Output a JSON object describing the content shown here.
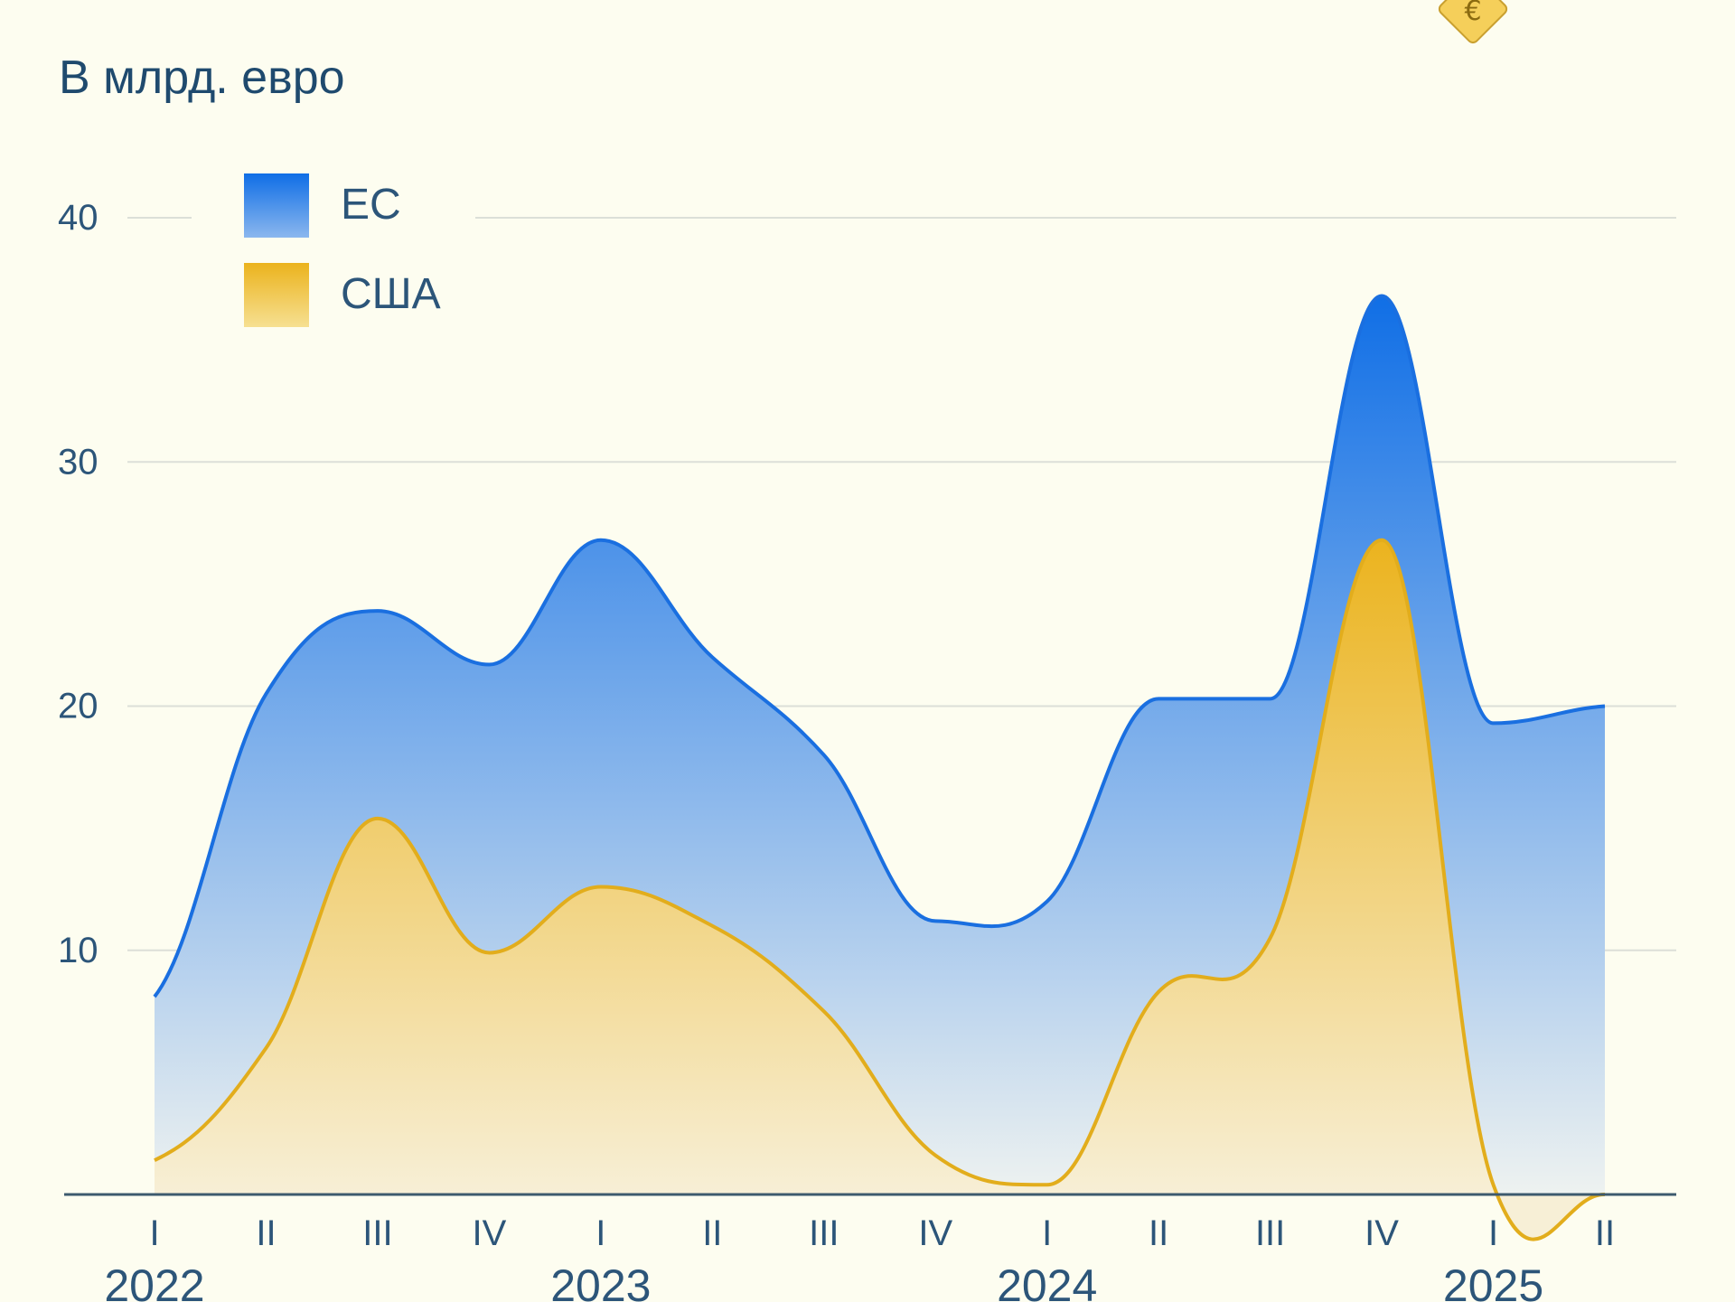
{
  "subtitle": "В млрд. евро",
  "chart_data": {
    "type": "area",
    "title": "",
    "subtitle": "В млрд. евро",
    "xlabel": "",
    "ylabel": "",
    "ylim": [
      0,
      40
    ],
    "yticks": [
      10,
      20,
      30,
      40
    ],
    "grid": true,
    "legend_position": "top-left",
    "quarters": [
      "I",
      "II",
      "III",
      "IV",
      "I",
      "II",
      "III",
      "IV",
      "I",
      "II",
      "III",
      "IV",
      "I",
      "II"
    ],
    "years": [
      {
        "label": "2022",
        "index": 0
      },
      {
        "label": "2023",
        "index": 4
      },
      {
        "label": "2024",
        "index": 8
      },
      {
        "label": "2025",
        "index": 12
      }
    ],
    "series": [
      {
        "name": "ЕС",
        "color": "#1a73e0",
        "values": [
          8.1,
          20.5,
          23.9,
          21.7,
          26.8,
          22.0,
          18.0,
          11.2,
          12.0,
          20.3,
          20.3,
          36.8,
          19.3,
          20.0
        ]
      },
      {
        "name": "США",
        "color": "#e8b020",
        "values": [
          1.4,
          6.0,
          15.4,
          9.9,
          12.6,
          11.0,
          7.5,
          1.6,
          0.4,
          8.3,
          10.5,
          26.8,
          0.4,
          0.0
        ]
      }
    ]
  },
  "icons": {
    "tag": "euro-price-tag-icon"
  }
}
